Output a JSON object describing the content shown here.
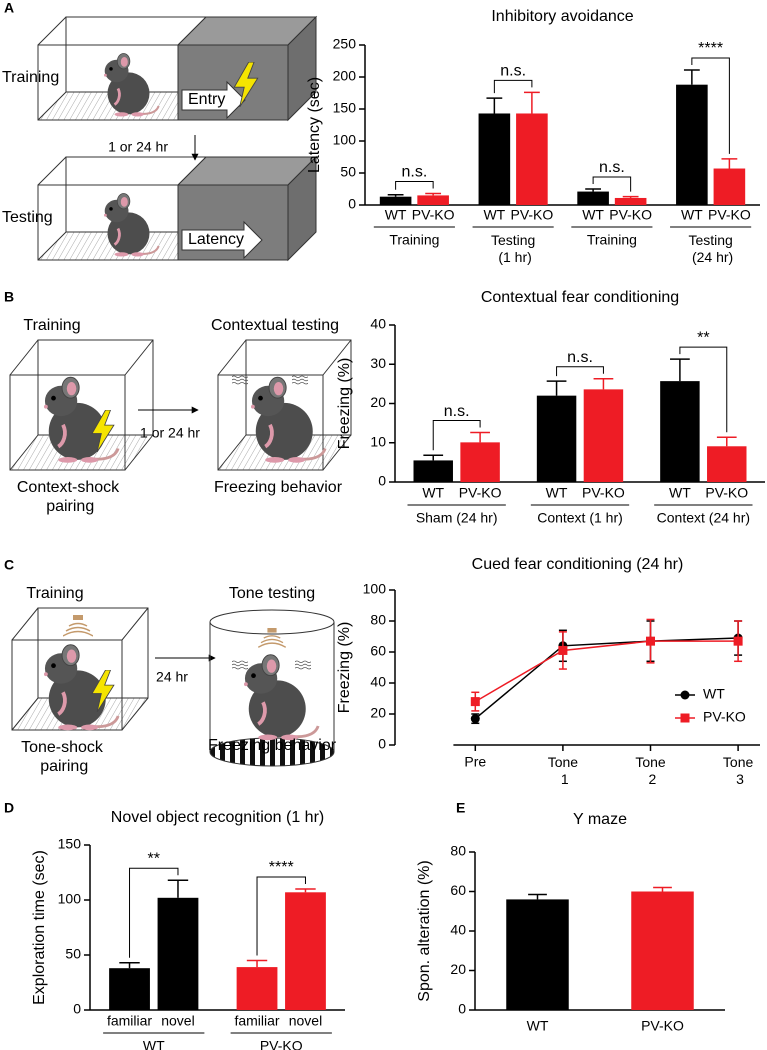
{
  "panel_labels": [
    "A",
    "B",
    "C",
    "D",
    "E"
  ],
  "diagrams": {
    "A": {
      "training": "Training",
      "testing": "Testing",
      "interval": "1 or 24 hr",
      "entry": "Entry",
      "latency": "Latency"
    },
    "B": {
      "training": "Training",
      "testing": "Contextual testing",
      "interval": "1 or 24 hr",
      "pairing": "Context-shock pairing",
      "behavior": "Freezing behavior"
    },
    "C": {
      "training": "Training",
      "testing": "Tone testing",
      "interval": "24 hr",
      "pairing": "Tone-shock pairing",
      "behavior": "Freezing behavior"
    }
  },
  "chart_data": [
    {
      "type": "bar",
      "title": "Inhibitory avoidance",
      "ylabel": "Latency (sec)",
      "ylim": [
        0,
        250
      ],
      "yticks": [
        0,
        50,
        100,
        150,
        200,
        250
      ],
      "categories": [
        "Training",
        "Testing (1 hr)",
        "Training",
        "Testing (24 hr)"
      ],
      "series": [
        {
          "name": "WT",
          "color": "#000000",
          "values": [
            13,
            143,
            21,
            188
          ],
          "errors": [
            3,
            24,
            4,
            23
          ]
        },
        {
          "name": "PV-KO",
          "color": "#ee1c25",
          "values": [
            15,
            143,
            11,
            57
          ],
          "errors": [
            3,
            33,
            2,
            15
          ]
        }
      ],
      "annotations": [
        "n.s.",
        "n.s.",
        "n.s.",
        "****"
      ]
    },
    {
      "type": "bar",
      "title": "Contextual fear conditioning",
      "ylabel": "Freezing (%)",
      "ylim": [
        0,
        40
      ],
      "yticks": [
        0,
        10,
        20,
        30,
        40
      ],
      "categories": [
        "Sham (24 hr)",
        "Context (1 hr)",
        "Context (24 hr)"
      ],
      "series": [
        {
          "name": "WT",
          "color": "#000000",
          "values": [
            5.5,
            22,
            25.7
          ],
          "errors": [
            1.3,
            3.7,
            5.6
          ]
        },
        {
          "name": "PV-KO",
          "color": "#ee1c25",
          "values": [
            10.1,
            23.6,
            9.1
          ],
          "errors": [
            2.5,
            2.7,
            2.3
          ]
        }
      ],
      "annotations": [
        "n.s.",
        "n.s.",
        "**"
      ]
    },
    {
      "type": "line",
      "title": "Cued fear conditioning (24 hr)",
      "ylabel": "Freezing (%)",
      "ylim": [
        0,
        100
      ],
      "yticks": [
        0,
        20,
        40,
        60,
        80,
        100
      ],
      "categories": [
        "Pre",
        "Tone 1",
        "Tone 2",
        "Tone 3"
      ],
      "series": [
        {
          "name": "WT",
          "color": "#000000",
          "marker": "circle",
          "values": [
            17,
            64,
            67,
            69
          ],
          "errors": [
            3,
            10,
            13,
            11
          ]
        },
        {
          "name": "PV-KO",
          "color": "#ee1c25",
          "marker": "square",
          "values": [
            28,
            61,
            67,
            67
          ],
          "errors": [
            6,
            12,
            14,
            13
          ]
        }
      ],
      "legend": "lower right"
    },
    {
      "type": "bar",
      "title": "Novel object recognition (1 hr)",
      "ylabel": "Exploration time (sec)",
      "ylim": [
        0,
        150
      ],
      "yticks": [
        0,
        50,
        100,
        150
      ],
      "categories": [
        "WT",
        "PV-KO"
      ],
      "colors": [
        "#000000",
        "#ee1c25"
      ],
      "series": [
        {
          "name": "familiar",
          "values": [
            38,
            39
          ],
          "errors": [
            5,
            6
          ]
        },
        {
          "name": "novel",
          "values": [
            102,
            107
          ],
          "errors": [
            16,
            3
          ]
        }
      ],
      "annotations": [
        "**",
        "****"
      ]
    },
    {
      "type": "bar",
      "title": "Y maze",
      "ylabel": "Spon. alteration (%)",
      "ylim": [
        0,
        80
      ],
      "yticks": [
        0,
        20,
        40,
        60,
        80
      ],
      "categories": [
        "WT",
        "PV-KO"
      ],
      "colors": [
        "#000000",
        "#ee1c25"
      ],
      "values": [
        56,
        60
      ],
      "errors": [
        2.5,
        2
      ]
    }
  ]
}
